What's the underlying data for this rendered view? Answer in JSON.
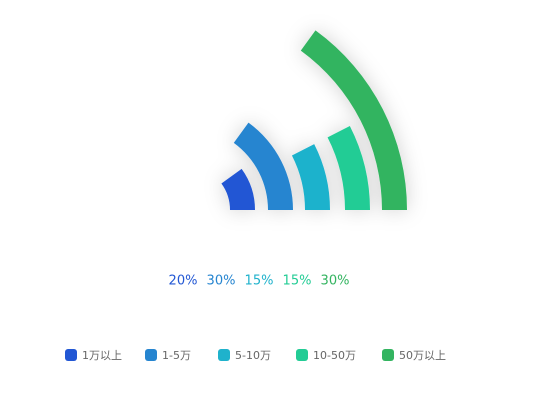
{
  "chart_data": {
    "type": "polar-bar",
    "categories": [
      "1万以上",
      "1-5万",
      "5-10万",
      "10-50万",
      "50万以上"
    ],
    "values": [
      20,
      30,
      15,
      15,
      30
    ],
    "value_labels": [
      "20%",
      "30%",
      "15%",
      "15%",
      "30%"
    ],
    "colors": [
      "#2257d4",
      "#2685d0",
      "#1fb2cc",
      "#23cc95",
      "#33b460"
    ],
    "ylim": [
      0,
      100
    ]
  }
}
